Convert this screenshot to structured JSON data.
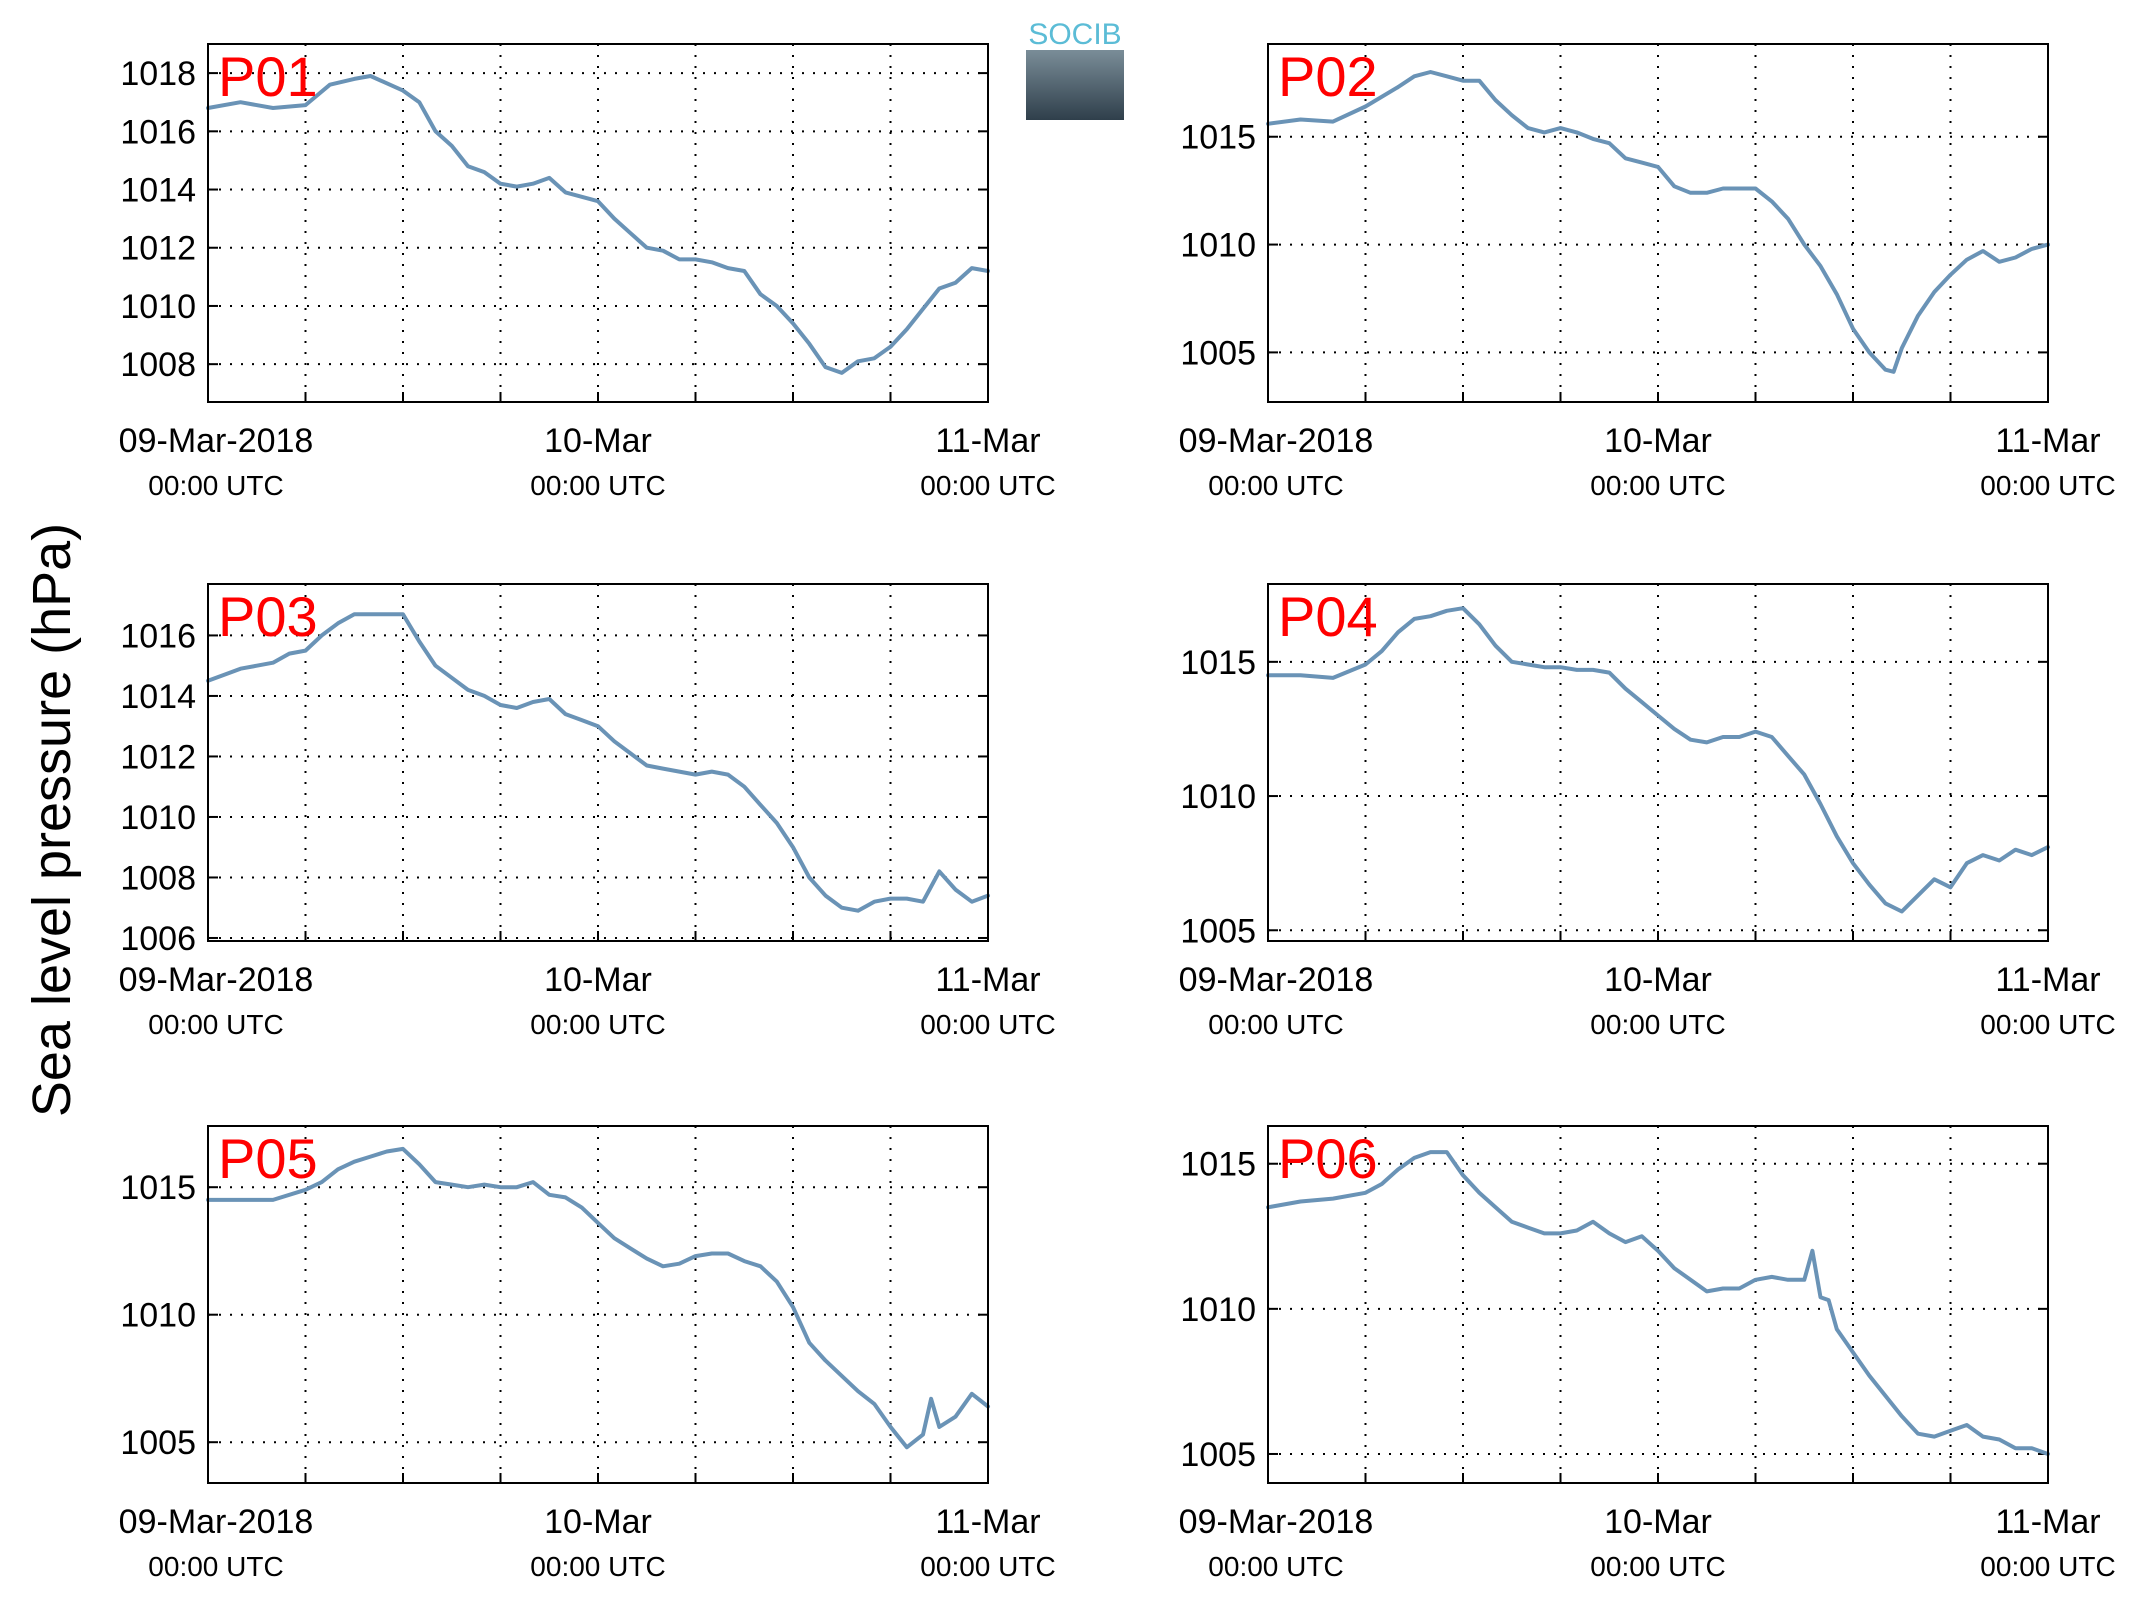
{
  "ylabel": "Sea level pressure (hPa)",
  "logo": {
    "text": "SOCIB"
  },
  "x_ticks": [
    {
      "date": "09-Mar-2018",
      "time": "00:00 UTC"
    },
    {
      "date": "10-Mar",
      "time": "00:00 UTC"
    },
    {
      "date": "11-Mar",
      "time": "00:00 UTC"
    }
  ],
  "chart_data": [
    {
      "type": "line",
      "label": "P01",
      "x_range": [
        "2018-03-09T00:00",
        "2018-03-11T00:00"
      ],
      "ylim": [
        1006.7,
        1019.0
      ],
      "yticks": [
        1008,
        1010,
        1012,
        1014,
        1016,
        1018
      ],
      "grid": true,
      "points": [
        [
          0,
          1016.8
        ],
        [
          2,
          1017.0
        ],
        [
          4,
          1016.8
        ],
        [
          6,
          1016.9
        ],
        [
          7.5,
          1017.6
        ],
        [
          9,
          1017.8
        ],
        [
          10,
          1017.9
        ],
        [
          12,
          1017.4
        ],
        [
          13,
          1017.0
        ],
        [
          14,
          1016.0
        ],
        [
          15,
          1015.5
        ],
        [
          16,
          1014.8
        ],
        [
          17,
          1014.6
        ],
        [
          18,
          1014.2
        ],
        [
          19,
          1014.1
        ],
        [
          20,
          1014.2
        ],
        [
          21,
          1014.4
        ],
        [
          22,
          1013.9
        ],
        [
          24,
          1013.6
        ],
        [
          25,
          1013.0
        ],
        [
          26,
          1012.5
        ],
        [
          27,
          1012.0
        ],
        [
          28,
          1011.9
        ],
        [
          29,
          1011.6
        ],
        [
          30,
          1011.6
        ],
        [
          31,
          1011.5
        ],
        [
          32,
          1011.3
        ],
        [
          33,
          1011.2
        ],
        [
          34,
          1010.4
        ],
        [
          35,
          1010.0
        ],
        [
          36,
          1009.4
        ],
        [
          37,
          1008.7
        ],
        [
          38,
          1007.9
        ],
        [
          39,
          1007.7
        ],
        [
          40,
          1008.1
        ],
        [
          41,
          1008.2
        ],
        [
          42,
          1008.6
        ],
        [
          43,
          1009.2
        ],
        [
          44,
          1009.9
        ],
        [
          45,
          1010.6
        ],
        [
          46,
          1010.8
        ],
        [
          47,
          1011.3
        ],
        [
          48,
          1011.2
        ]
      ]
    },
    {
      "type": "line",
      "label": "P02",
      "x_range": [
        "2018-03-09T00:00",
        "2018-03-11T00:00"
      ],
      "ylim": [
        1002.7,
        1019.3
      ],
      "yticks": [
        1005,
        1010,
        1015
      ],
      "grid": true,
      "points": [
        [
          0,
          1015.6
        ],
        [
          2,
          1015.8
        ],
        [
          4,
          1015.7
        ],
        [
          6,
          1016.4
        ],
        [
          8,
          1017.3
        ],
        [
          9,
          1017.8
        ],
        [
          10,
          1018.0
        ],
        [
          11,
          1017.8
        ],
        [
          12,
          1017.6
        ],
        [
          13,
          1017.6
        ],
        [
          14,
          1016.7
        ],
        [
          15,
          1016.0
        ],
        [
          16,
          1015.4
        ],
        [
          17,
          1015.2
        ],
        [
          18,
          1015.4
        ],
        [
          19,
          1015.2
        ],
        [
          20,
          1014.9
        ],
        [
          21,
          1014.7
        ],
        [
          22,
          1014.0
        ],
        [
          23,
          1013.8
        ],
        [
          24,
          1013.6
        ],
        [
          25,
          1012.7
        ],
        [
          26,
          1012.4
        ],
        [
          27,
          1012.4
        ],
        [
          28,
          1012.6
        ],
        [
          29,
          1012.6
        ],
        [
          30,
          1012.6
        ],
        [
          31,
          1012.0
        ],
        [
          32,
          1011.2
        ],
        [
          33,
          1010.0
        ],
        [
          34,
          1009.0
        ],
        [
          35,
          1007.7
        ],
        [
          36,
          1006.1
        ],
        [
          37,
          1005.0
        ],
        [
          38,
          1004.2
        ],
        [
          38.5,
          1004.1
        ],
        [
          39,
          1005.2
        ],
        [
          40,
          1006.7
        ],
        [
          41,
          1007.8
        ],
        [
          42,
          1008.6
        ],
        [
          43,
          1009.3
        ],
        [
          44,
          1009.7
        ],
        [
          45,
          1009.2
        ],
        [
          46,
          1009.4
        ],
        [
          47,
          1009.8
        ],
        [
          48,
          1010.0
        ]
      ]
    },
    {
      "type": "line",
      "label": "P03",
      "x_range": [
        "2018-03-09T00:00",
        "2018-03-11T00:00"
      ],
      "ylim": [
        1005.9,
        1017.7
      ],
      "yticks": [
        1006,
        1008,
        1010,
        1012,
        1014,
        1016
      ],
      "grid": true,
      "points": [
        [
          0,
          1014.5
        ],
        [
          1,
          1014.7
        ],
        [
          2,
          1014.9
        ],
        [
          3,
          1015.0
        ],
        [
          4,
          1015.1
        ],
        [
          5,
          1015.4
        ],
        [
          6,
          1015.5
        ],
        [
          7,
          1016.0
        ],
        [
          8,
          1016.4
        ],
        [
          9,
          1016.7
        ],
        [
          10,
          1016.7
        ],
        [
          11,
          1016.7
        ],
        [
          12,
          1016.7
        ],
        [
          13,
          1015.8
        ],
        [
          14,
          1015.0
        ],
        [
          15,
          1014.6
        ],
        [
          16,
          1014.2
        ],
        [
          17,
          1014.0
        ],
        [
          18,
          1013.7
        ],
        [
          19,
          1013.6
        ],
        [
          20,
          1013.8
        ],
        [
          21,
          1013.9
        ],
        [
          22,
          1013.4
        ],
        [
          23,
          1013.2
        ],
        [
          24,
          1013.0
        ],
        [
          25,
          1012.5
        ],
        [
          26,
          1012.1
        ],
        [
          27,
          1011.7
        ],
        [
          28,
          1011.6
        ],
        [
          29,
          1011.5
        ],
        [
          30,
          1011.4
        ],
        [
          31,
          1011.5
        ],
        [
          32,
          1011.4
        ],
        [
          33,
          1011.0
        ],
        [
          34,
          1010.4
        ],
        [
          35,
          1009.8
        ],
        [
          36,
          1009.0
        ],
        [
          37,
          1008.0
        ],
        [
          38,
          1007.4
        ],
        [
          39,
          1007.0
        ],
        [
          40,
          1006.9
        ],
        [
          41,
          1007.2
        ],
        [
          42,
          1007.3
        ],
        [
          43,
          1007.3
        ],
        [
          44,
          1007.2
        ],
        [
          45,
          1008.2
        ],
        [
          46,
          1007.6
        ],
        [
          47,
          1007.2
        ],
        [
          48,
          1007.4
        ]
      ]
    },
    {
      "type": "line",
      "label": "P04",
      "x_range": [
        "2018-03-09T00:00",
        "2018-03-11T00:00"
      ],
      "ylim": [
        1004.6,
        1017.9
      ],
      "yticks": [
        1005,
        1010,
        1015
      ],
      "grid": true,
      "points": [
        [
          0,
          1014.5
        ],
        [
          2,
          1014.5
        ],
        [
          4,
          1014.4
        ],
        [
          6,
          1014.9
        ],
        [
          7,
          1015.4
        ],
        [
          8,
          1016.1
        ],
        [
          9,
          1016.6
        ],
        [
          10,
          1016.7
        ],
        [
          11,
          1016.9
        ],
        [
          12,
          1017.0
        ],
        [
          13,
          1016.4
        ],
        [
          14,
          1015.6
        ],
        [
          15,
          1015.0
        ],
        [
          16,
          1014.9
        ],
        [
          17,
          1014.8
        ],
        [
          18,
          1014.8
        ],
        [
          19,
          1014.7
        ],
        [
          20,
          1014.7
        ],
        [
          21,
          1014.6
        ],
        [
          22,
          1014.0
        ],
        [
          23,
          1013.5
        ],
        [
          24,
          1013.0
        ],
        [
          25,
          1012.5
        ],
        [
          26,
          1012.1
        ],
        [
          27,
          1012.0
        ],
        [
          28,
          1012.2
        ],
        [
          29,
          1012.2
        ],
        [
          30,
          1012.4
        ],
        [
          31,
          1012.2
        ],
        [
          32,
          1011.5
        ],
        [
          33,
          1010.8
        ],
        [
          34,
          1009.7
        ],
        [
          35,
          1008.5
        ],
        [
          36,
          1007.5
        ],
        [
          37,
          1006.7
        ],
        [
          38,
          1006.0
        ],
        [
          39,
          1005.7
        ],
        [
          40,
          1006.3
        ],
        [
          41,
          1006.9
        ],
        [
          42,
          1006.6
        ],
        [
          43,
          1007.5
        ],
        [
          44,
          1007.8
        ],
        [
          45,
          1007.6
        ],
        [
          46,
          1008.0
        ],
        [
          47,
          1007.8
        ],
        [
          48,
          1008.1
        ]
      ]
    },
    {
      "type": "line",
      "label": "P05",
      "x_range": [
        "2018-03-09T00:00",
        "2018-03-11T00:00"
      ],
      "ylim": [
        1003.4,
        1017.4
      ],
      "yticks": [
        1005,
        1010,
        1015
      ],
      "grid": true,
      "points": [
        [
          0,
          1014.5
        ],
        [
          2,
          1014.5
        ],
        [
          4,
          1014.5
        ],
        [
          6,
          1014.9
        ],
        [
          7,
          1015.2
        ],
        [
          8,
          1015.7
        ],
        [
          9,
          1016.0
        ],
        [
          10,
          1016.2
        ],
        [
          11,
          1016.4
        ],
        [
          12,
          1016.5
        ],
        [
          13,
          1015.9
        ],
        [
          14,
          1015.2
        ],
        [
          15,
          1015.1
        ],
        [
          16,
          1015.0
        ],
        [
          17,
          1015.1
        ],
        [
          18,
          1015.0
        ],
        [
          19,
          1015.0
        ],
        [
          20,
          1015.2
        ],
        [
          21,
          1014.7
        ],
        [
          22,
          1014.6
        ],
        [
          23,
          1014.2
        ],
        [
          24,
          1013.6
        ],
        [
          25,
          1013.0
        ],
        [
          26,
          1012.6
        ],
        [
          27,
          1012.2
        ],
        [
          28,
          1011.9
        ],
        [
          29,
          1012.0
        ],
        [
          30,
          1012.3
        ],
        [
          31,
          1012.4
        ],
        [
          32,
          1012.4
        ],
        [
          33,
          1012.1
        ],
        [
          34,
          1011.9
        ],
        [
          35,
          1011.3
        ],
        [
          36,
          1010.3
        ],
        [
          37,
          1008.9
        ],
        [
          38,
          1008.2
        ],
        [
          39,
          1007.6
        ],
        [
          40,
          1007.0
        ],
        [
          41,
          1006.5
        ],
        [
          42,
          1005.6
        ],
        [
          43,
          1004.8
        ],
        [
          44,
          1005.3
        ],
        [
          44.5,
          1006.7
        ],
        [
          45,
          1005.6
        ],
        [
          46,
          1006.0
        ],
        [
          47,
          1006.9
        ],
        [
          48,
          1006.4
        ]
      ]
    },
    {
      "type": "line",
      "label": "P06",
      "x_range": [
        "2018-03-09T00:00",
        "2018-03-11T00:00"
      ],
      "ylim": [
        1004.0,
        1016.3
      ],
      "yticks": [
        1005,
        1010,
        1015
      ],
      "grid": true,
      "points": [
        [
          0,
          1013.5
        ],
        [
          2,
          1013.7
        ],
        [
          4,
          1013.8
        ],
        [
          6,
          1014.0
        ],
        [
          7,
          1014.3
        ],
        [
          8,
          1014.8
        ],
        [
          9,
          1015.2
        ],
        [
          10,
          1015.4
        ],
        [
          11,
          1015.4
        ],
        [
          12,
          1014.6
        ],
        [
          13,
          1014.0
        ],
        [
          14,
          1013.5
        ],
        [
          15,
          1013.0
        ],
        [
          16,
          1012.8
        ],
        [
          17,
          1012.6
        ],
        [
          18,
          1012.6
        ],
        [
          19,
          1012.7
        ],
        [
          20,
          1013.0
        ],
        [
          21,
          1012.6
        ],
        [
          22,
          1012.3
        ],
        [
          23,
          1012.5
        ],
        [
          24,
          1012.0
        ],
        [
          25,
          1011.4
        ],
        [
          26,
          1011.0
        ],
        [
          27,
          1010.6
        ],
        [
          28,
          1010.7
        ],
        [
          29,
          1010.7
        ],
        [
          30,
          1011.0
        ],
        [
          31,
          1011.1
        ],
        [
          32,
          1011.0
        ],
        [
          33,
          1011.0
        ],
        [
          33.5,
          1012.0
        ],
        [
          34,
          1010.4
        ],
        [
          34.5,
          1010.3
        ],
        [
          35,
          1009.3
        ],
        [
          36,
          1008.5
        ],
        [
          37,
          1007.7
        ],
        [
          38,
          1007.0
        ],
        [
          39,
          1006.3
        ],
        [
          40,
          1005.7
        ],
        [
          41,
          1005.6
        ],
        [
          42,
          1005.8
        ],
        [
          43,
          1006.0
        ],
        [
          44,
          1005.6
        ],
        [
          45,
          1005.5
        ],
        [
          46,
          1005.2
        ],
        [
          47,
          1005.2
        ],
        [
          48,
          1005.0
        ]
      ]
    }
  ]
}
